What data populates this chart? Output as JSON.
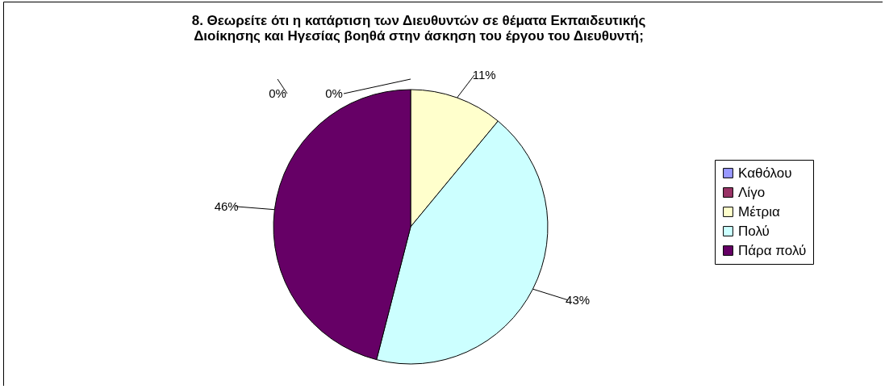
{
  "chart_data": {
    "type": "pie",
    "title": "8. Θεωρείτε ότι η κατάρτιση των Διευθυντών σε θέματα Εκπαιδευτικής\nΔιοίκησης και Ηγεσίας βοηθά στην άσκηση του έργου του Διευθυντή;",
    "categories": [
      "Καθόλου",
      "Λίγο",
      "Μέτρια",
      "Πολύ",
      "Πάρα πολύ"
    ],
    "values": [
      0,
      0,
      11,
      43,
      46
    ],
    "colors": [
      "#9999ff",
      "#993366",
      "#ffffcc",
      "#ccffff",
      "#660066"
    ],
    "value_labels": [
      "0%",
      "0%",
      "11%",
      "43%",
      "46%"
    ],
    "legend": "right"
  }
}
